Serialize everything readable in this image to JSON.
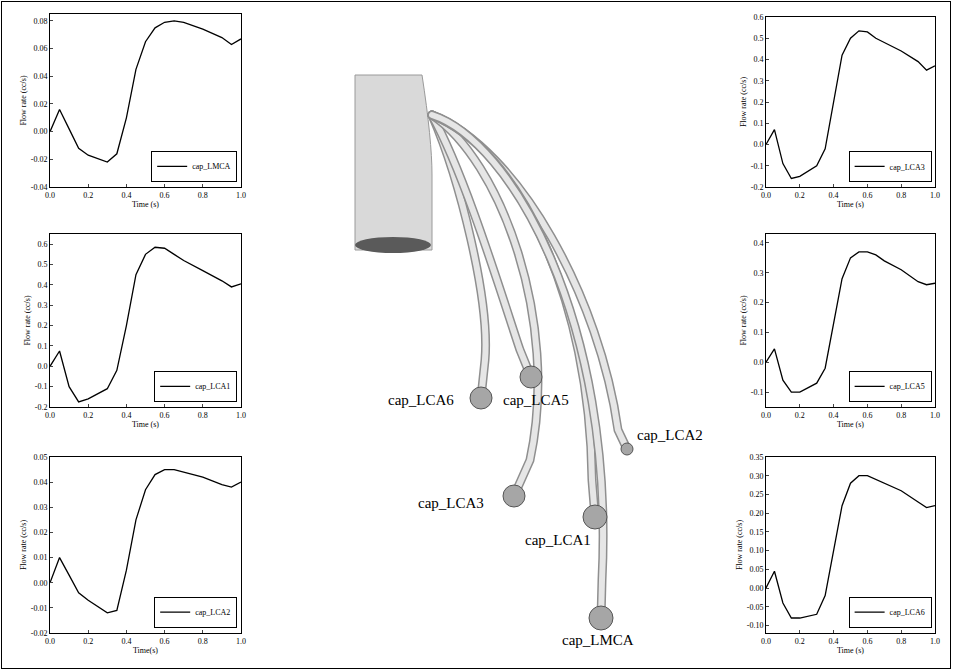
{
  "chart_data": [
    {
      "type": "line",
      "x_label": "Time (s)",
      "y_label": "Flow rate (cc/s)",
      "x": [
        0,
        0.05,
        0.1,
        0.15,
        0.2,
        0.3,
        0.35,
        0.4,
        0.45,
        0.5,
        0.55,
        0.6,
        0.65,
        0.7,
        0.8,
        0.9,
        0.95,
        1.0
      ],
      "xlim": [
        0,
        1.0
      ],
      "xticks": [
        {
          "value": 0,
          "label": "0.0"
        },
        0.2,
        0.4,
        0.6,
        0.8,
        {
          "value": 1.0,
          "label": "1.0"
        }
      ],
      "ylim": [
        -0.04,
        0.085
      ],
      "yticks": [
        -0.04,
        -0.02,
        {
          "value": 0,
          "label": "0.00"
        },
        0.02,
        0.04,
        0.06,
        0.08
      ],
      "grid": false,
      "legend": "lower right",
      "series": [
        {
          "name": "cap_LMCA",
          "color": "#000000",
          "values": [
            0,
            0.016,
            0.002,
            -0.012,
            -0.017,
            -0.022,
            -0.016,
            0.01,
            0.045,
            0.065,
            0.075,
            0.079,
            0.08,
            0.079,
            0.074,
            0.068,
            0.063,
            0.067
          ]
        }
      ]
    },
    {
      "type": "line",
      "x_label": "Time (s)",
      "y_label": "Flow rate (cc/s)",
      "x": [
        0,
        0.05,
        0.1,
        0.15,
        0.2,
        0.3,
        0.35,
        0.4,
        0.45,
        0.5,
        0.55,
        0.6,
        0.65,
        0.7,
        0.8,
        0.9,
        0.95,
        1.0
      ],
      "xlim": [
        0,
        1.0
      ],
      "xticks": [
        {
          "value": 0,
          "label": "0.0"
        },
        0.2,
        0.4,
        0.6,
        0.8,
        {
          "value": 1.0,
          "label": "1.0"
        }
      ],
      "ylim": [
        -0.2,
        0.65
      ],
      "yticks": [
        -0.2,
        -0.1,
        {
          "value": 0,
          "label": "0.0"
        },
        0.1,
        0.2,
        0.3,
        0.4,
        0.5,
        0.6
      ],
      "grid": false,
      "legend": "lower right",
      "series": [
        {
          "name": "cap_LCA1",
          "color": "#000000",
          "values": [
            0,
            0.075,
            -0.1,
            -0.175,
            -0.16,
            -0.11,
            -0.02,
            0.2,
            0.45,
            0.55,
            0.585,
            0.58,
            0.55,
            0.52,
            0.47,
            0.42,
            0.39,
            0.405
          ]
        }
      ]
    },
    {
      "type": "line",
      "x_label": "Time(s)",
      "y_label": "Flow rate (cc/s)",
      "x": [
        0,
        0.05,
        0.1,
        0.15,
        0.2,
        0.3,
        0.35,
        0.4,
        0.45,
        0.5,
        0.55,
        0.6,
        0.65,
        0.7,
        0.8,
        0.9,
        0.95,
        1.0
      ],
      "xlim": [
        0,
        1.0
      ],
      "xticks": [
        {
          "value": 0,
          "label": "0.0"
        },
        0.2,
        0.4,
        0.6,
        0.8,
        {
          "value": 1.0,
          "label": "1.0"
        }
      ],
      "ylim": [
        -0.02,
        0.05
      ],
      "yticks": [
        -0.02,
        -0.01,
        {
          "value": 0,
          "label": "0.00"
        },
        0.01,
        0.02,
        0.03,
        0.04,
        0.05
      ],
      "grid": false,
      "legend": "lower right",
      "series": [
        {
          "name": "cap_LCA2",
          "color": "#000000",
          "values": [
            0,
            0.01,
            0.003,
            -0.004,
            -0.007,
            -0.012,
            -0.011,
            0.005,
            0.025,
            0.037,
            0.043,
            0.045,
            0.045,
            0.044,
            0.042,
            0.039,
            0.038,
            0.04
          ]
        }
      ]
    },
    {
      "type": "line",
      "x_label": "Time (s)",
      "y_label": "Flow rate (cc/s)",
      "x": [
        0,
        0.05,
        0.1,
        0.15,
        0.2,
        0.3,
        0.35,
        0.4,
        0.45,
        0.5,
        0.55,
        0.6,
        0.65,
        0.7,
        0.8,
        0.9,
        0.95,
        1.0
      ],
      "xlim": [
        0,
        1.0
      ],
      "xticks": [
        {
          "value": 0,
          "label": "0.0"
        },
        0.2,
        0.4,
        0.6,
        0.8,
        {
          "value": 1.0,
          "label": "1.0"
        }
      ],
      "ylim": [
        -0.2,
        0.6
      ],
      "yticks": [
        -0.2,
        -0.1,
        {
          "value": 0,
          "label": "0.0"
        },
        0.1,
        0.2,
        0.3,
        0.4,
        0.5,
        0.6
      ],
      "grid": false,
      "legend": "lower right",
      "series": [
        {
          "name": "cap_LCA3",
          "color": "#000000",
          "values": [
            0,
            0.07,
            -0.09,
            -0.16,
            -0.15,
            -0.1,
            -0.02,
            0.2,
            0.42,
            0.5,
            0.535,
            0.53,
            0.5,
            0.48,
            0.44,
            0.39,
            0.35,
            0.37
          ]
        }
      ]
    },
    {
      "type": "line",
      "x_label": "Time (s)",
      "y_label": "Flow rate (cc/s)",
      "x": [
        0,
        0.05,
        0.1,
        0.15,
        0.2,
        0.3,
        0.35,
        0.4,
        0.45,
        0.5,
        0.55,
        0.6,
        0.65,
        0.7,
        0.8,
        0.9,
        0.95,
        1.0
      ],
      "xlim": [
        0,
        1.0
      ],
      "xticks": [
        {
          "value": 0,
          "label": "0.0"
        },
        0.2,
        0.4,
        0.6,
        0.8,
        {
          "value": 1.0,
          "label": "1.0"
        }
      ],
      "ylim": [
        -0.15,
        0.43
      ],
      "yticks": [
        -0.1,
        {
          "value": 0,
          "label": "0.0"
        },
        0.1,
        0.2,
        0.3,
        0.4
      ],
      "grid": false,
      "legend": "lower right",
      "series": [
        {
          "name": "cap_LCA5",
          "color": "#000000",
          "values": [
            0,
            0.045,
            -0.06,
            -0.1,
            -0.1,
            -0.07,
            -0.02,
            0.13,
            0.28,
            0.35,
            0.37,
            0.37,
            0.36,
            0.34,
            0.31,
            0.27,
            0.26,
            0.265
          ]
        }
      ]
    },
    {
      "type": "line",
      "x_label": "Time (s)",
      "y_label": "Flow rate (cc/s)",
      "x": [
        0,
        0.05,
        0.1,
        0.15,
        0.2,
        0.3,
        0.35,
        0.4,
        0.45,
        0.5,
        0.55,
        0.6,
        0.65,
        0.7,
        0.8,
        0.9,
        0.95,
        1.0
      ],
      "xlim": [
        0,
        1.0
      ],
      "xticks": [
        {
          "value": 0,
          "label": "0.0"
        },
        0.2,
        0.4,
        0.6,
        0.8,
        {
          "value": 1.0,
          "label": "1.0"
        }
      ],
      "ylim": [
        -0.12,
        0.35
      ],
      "yticks": [
        {
          "value": -0.1,
          "label": "-0.10"
        },
        {
          "value": -0.05,
          "label": "-0.05"
        },
        {
          "value": 0,
          "label": "0.00"
        },
        {
          "value": 0.05,
          "label": "0.05"
        },
        {
          "value": 0.1,
          "label": "0.10"
        },
        0.15,
        {
          "value": 0.2,
          "label": "0.20"
        },
        0.25,
        {
          "value": 0.3,
          "label": "0.30"
        },
        0.35
      ],
      "grid": false,
      "legend": "lower right",
      "series": [
        {
          "name": "cap_LCA6",
          "color": "#000000",
          "values": [
            0,
            0.045,
            -0.04,
            -0.08,
            -0.08,
            -0.07,
            -0.02,
            0.1,
            0.22,
            0.28,
            0.3,
            0.3,
            0.29,
            0.28,
            0.26,
            0.23,
            0.215,
            0.22
          ]
        }
      ]
    }
  ],
  "diagram": {
    "outlets": [
      "cap_LCA6",
      "cap_LCA5",
      "cap_LCA3",
      "cap_LCA2",
      "cap_LCA1",
      "cap_LMCA"
    ]
  }
}
